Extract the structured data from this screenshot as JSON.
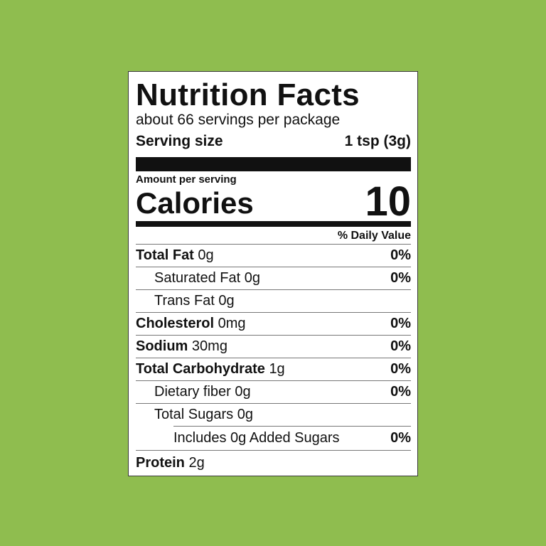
{
  "label": {
    "title": "Nutrition Facts",
    "servings_per_package": "about 66 servings per package",
    "serving_size_label": "Serving size",
    "serving_size_value": "1 tsp (3g)",
    "amount_per_serving": "Amount per serving",
    "calories_label": "Calories",
    "calories_value": "10",
    "daily_value_header": "% Daily Value",
    "rows": [
      {
        "name": "Total Fat",
        "amount": "0g",
        "dv": "0%"
      },
      {
        "name": "Saturated Fat 0g",
        "dv": "0%"
      },
      {
        "name": "Trans Fat 0g"
      },
      {
        "name": "Cholesterol",
        "amount": "0mg",
        "dv": "0%"
      },
      {
        "name": "Sodium",
        "amount": "30mg",
        "dv": "0%"
      },
      {
        "name": "Total Carbohydrate",
        "amount": "1g",
        "dv": "0%"
      },
      {
        "name": "Dietary fiber 0g",
        "dv": "0%"
      },
      {
        "name": "Total Sugars 0g"
      },
      {
        "name": "Includes 0g Added Sugars",
        "dv": "0%"
      },
      {
        "name": "Protein",
        "amount": "2g"
      }
    ]
  },
  "colors": {
    "background": "#8fbd4f",
    "label": "#ffffff",
    "ink": "#111111"
  }
}
